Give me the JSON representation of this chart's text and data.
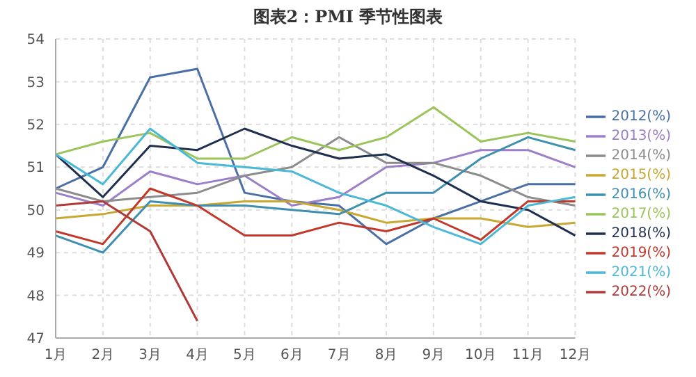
{
  "chart_data": {
    "type": "line",
    "title": "图表2：PMI 季节性图表",
    "categories": [
      "1月",
      "2月",
      "3月",
      "4月",
      "5月",
      "6月",
      "7月",
      "8月",
      "9月",
      "10月",
      "11月",
      "12月"
    ],
    "series": [
      {
        "name": "2012(%)",
        "color": "#4a6fa5",
        "values": [
          50.5,
          51.0,
          53.1,
          53.3,
          50.4,
          50.2,
          50.1,
          49.2,
          49.8,
          50.2,
          50.6,
          50.6
        ]
      },
      {
        "name": "2013(%)",
        "color": "#9b7fc8",
        "values": [
          50.4,
          50.1,
          50.9,
          50.6,
          50.8,
          50.1,
          50.3,
          51.0,
          51.1,
          51.4,
          51.4,
          51.0
        ]
      },
      {
        "name": "2014(%)",
        "color": "#8c8c8c",
        "values": [
          50.5,
          50.2,
          50.3,
          50.4,
          50.8,
          51.0,
          51.7,
          51.1,
          51.1,
          50.8,
          50.3,
          50.1
        ]
      },
      {
        "name": "2015(%)",
        "color": "#c8a830",
        "values": [
          49.8,
          49.9,
          50.1,
          50.1,
          50.2,
          50.2,
          50.0,
          49.7,
          49.8,
          49.8,
          49.6,
          49.7
        ]
      },
      {
        "name": "2016(%)",
        "color": "#3f8fb0",
        "values": [
          49.4,
          49.0,
          50.2,
          50.1,
          50.1,
          50.0,
          49.9,
          50.4,
          50.4,
          51.2,
          51.7,
          51.4
        ]
      },
      {
        "name": "2017(%)",
        "color": "#9bc45a",
        "values": [
          51.3,
          51.6,
          51.8,
          51.2,
          51.2,
          51.7,
          51.4,
          51.7,
          52.4,
          51.6,
          51.8,
          51.6
        ]
      },
      {
        "name": "2018(%)",
        "color": "#1f2f4f",
        "values": [
          51.3,
          50.3,
          51.5,
          51.4,
          51.9,
          51.5,
          51.2,
          51.3,
          50.8,
          50.2,
          50.0,
          49.4
        ]
      },
      {
        "name": "2019(%)",
        "color": "#c0392b",
        "values": [
          49.5,
          49.2,
          50.5,
          50.1,
          49.4,
          49.4,
          49.7,
          49.5,
          49.8,
          49.3,
          50.2,
          50.2
        ]
      },
      {
        "name": "2021(%)",
        "color": "#4bb8d8",
        "values": [
          51.3,
          50.6,
          51.9,
          51.1,
          51.0,
          50.9,
          50.4,
          50.1,
          49.6,
          49.2,
          50.1,
          50.3
        ]
      },
      {
        "name": "2022(%)",
        "color": "#b03a3a",
        "values": [
          50.1,
          50.2,
          49.5,
          47.4,
          null,
          null,
          null,
          null,
          null,
          null,
          null,
          null
        ]
      }
    ],
    "ylim": [
      47,
      54
    ],
    "yticks": [
      47,
      48,
      49,
      50,
      51,
      52,
      53,
      54
    ],
    "grid": true,
    "legend": "right",
    "marker": "none",
    "line_style": "solid"
  }
}
